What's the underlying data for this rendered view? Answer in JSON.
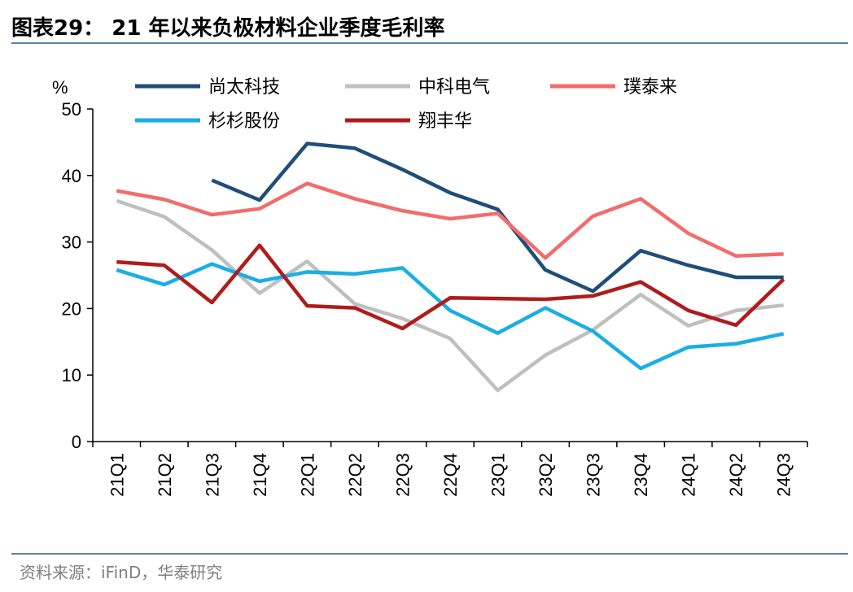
{
  "header": {
    "title": "图表29： 21 年以来负极材料企业季度毛利率"
  },
  "footer": {
    "source": "资料来源：iFinD，华泰研究"
  },
  "chart_data": {
    "type": "line",
    "title": "",
    "xlabel": "",
    "ylabel": "%",
    "ylim": [
      0,
      50
    ],
    "yticks": [
      0,
      10,
      20,
      30,
      40,
      50
    ],
    "grid": false,
    "legend_position": "top",
    "categories": [
      "21Q1",
      "21Q2",
      "21Q3",
      "21Q4",
      "22Q1",
      "22Q2",
      "22Q3",
      "22Q4",
      "23Q1",
      "23Q2",
      "23Q3",
      "23Q4",
      "24Q1",
      "24Q2",
      "24Q3"
    ],
    "series": [
      {
        "name": "尚太科技",
        "color": "#1f4e79",
        "values": [
          null,
          null,
          39.3,
          36.3,
          44.8,
          44.1,
          40.9,
          37.4,
          34.9,
          25.8,
          22.6,
          28.7,
          26.5,
          24.7,
          24.7
        ]
      },
      {
        "name": "中科电气",
        "color": "#bfbfbf",
        "values": [
          36.2,
          33.8,
          28.8,
          22.3,
          27.1,
          20.7,
          18.5,
          15.5,
          7.7,
          13.0,
          16.8,
          22.1,
          17.4,
          19.7,
          20.5
        ]
      },
      {
        "name": "璞泰来",
        "color": "#f26c6c",
        "values": [
          37.7,
          36.4,
          34.1,
          35.0,
          38.8,
          36.5,
          34.7,
          33.5,
          34.3,
          27.6,
          33.9,
          36.5,
          31.3,
          27.9,
          28.2
        ]
      },
      {
        "name": "杉杉股份",
        "color": "#1aaee5",
        "values": [
          25.8,
          23.6,
          26.7,
          24.1,
          25.5,
          25.2,
          26.1,
          19.7,
          16.3,
          20.1,
          16.6,
          11.0,
          14.2,
          14.7,
          16.2
        ]
      },
      {
        "name": "翔丰华",
        "color": "#b01b1b",
        "values": [
          27.0,
          26.5,
          20.9,
          29.5,
          20.4,
          20.1,
          17.0,
          21.6,
          21.5,
          21.4,
          21.9,
          24.0,
          19.7,
          17.5,
          24.4
        ]
      }
    ]
  }
}
